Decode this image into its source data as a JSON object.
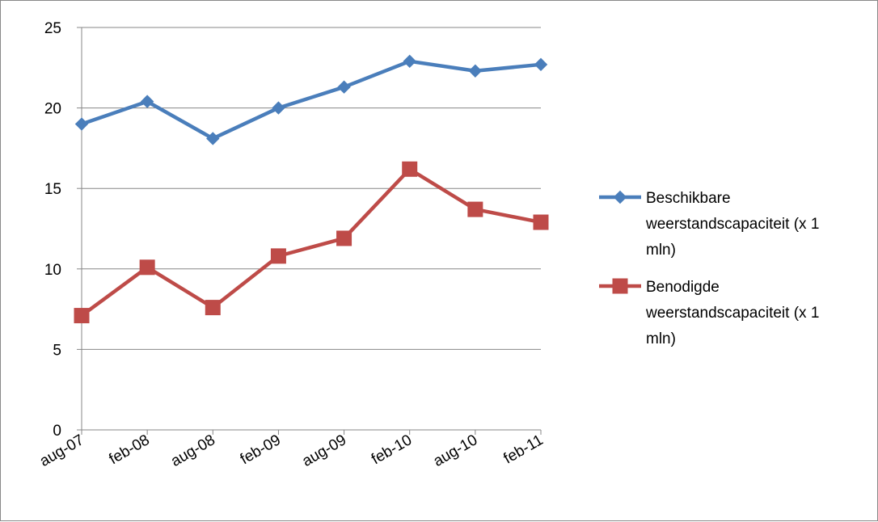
{
  "chart_data": {
    "type": "line",
    "title": "",
    "xlabel": "",
    "ylabel": "",
    "categories": [
      "aug-07",
      "feb-08",
      "aug-08",
      "feb-09",
      "aug-09",
      "feb-10",
      "aug-10",
      "feb-11"
    ],
    "ylim": [
      0,
      25
    ],
    "yticks": [
      0,
      5,
      10,
      15,
      20,
      25
    ],
    "grid": true,
    "legend_position": "right",
    "series": [
      {
        "name": "Beschikbare weerstandscapaciteit (x 1 mln)",
        "legend_lines": [
          "Beschikbare",
          "weerstandscapaciteit (x 1",
          "mln)"
        ],
        "color": "#4a7ebb",
        "marker": "diamond",
        "values": [
          19.0,
          20.4,
          18.1,
          20.0,
          21.3,
          22.9,
          22.3,
          22.7
        ]
      },
      {
        "name": "Benodigde weerstandscapaciteit (x 1 mln)",
        "legend_lines": [
          "Benodigde",
          "weerstandscapaciteit (x 1",
          "mln)"
        ],
        "color": "#be4b48",
        "marker": "square",
        "values": [
          7.1,
          10.1,
          7.6,
          10.8,
          11.9,
          16.2,
          13.7,
          12.9
        ]
      }
    ]
  }
}
